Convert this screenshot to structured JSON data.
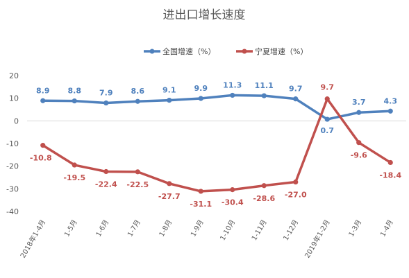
{
  "chart_data": {
    "type": "line",
    "title": "进出口增长速度",
    "categories": [
      "2018年1-4月",
      "1-5月",
      "1-6月",
      "1-7月",
      "1-8月",
      "1-9月",
      "1-10月",
      "1-11月",
      "1-12月",
      "2019年1-2月",
      "1-3月",
      "1-4月"
    ],
    "series": [
      {
        "name": "全国增速（%）",
        "color": "#4f81bd",
        "values": [
          8.9,
          8.8,
          7.9,
          8.6,
          9.1,
          9.9,
          11.3,
          11.1,
          9.7,
          0.7,
          3.7,
          4.3
        ],
        "labels": [
          "8.9",
          "8.8",
          "7.9",
          "8.6",
          "9.1",
          "9.9",
          "11.3",
          "11.1",
          "9.7",
          "0.7",
          "3.7",
          "4.3"
        ]
      },
      {
        "name": "宁夏增速（%）",
        "color": "#c0504d",
        "values": [
          -10.8,
          -19.5,
          -22.4,
          -22.5,
          -27.7,
          -31.1,
          -30.4,
          -28.6,
          -27.0,
          9.7,
          -9.6,
          -18.4
        ],
        "labels": [
          "-10.8",
          "-19.5",
          "-22.4",
          "-22.5",
          "-27.7",
          "-31.1",
          "-30.4",
          "-28.6",
          "-27.0",
          "9.7",
          "-9.6",
          "-18.4"
        ]
      }
    ],
    "ylim": [
      -40,
      20
    ],
    "yticks": [
      "20",
      "10",
      "0",
      "-10",
      "-20",
      "-30",
      "-40"
    ],
    "grid": false,
    "legend_position": "top"
  }
}
